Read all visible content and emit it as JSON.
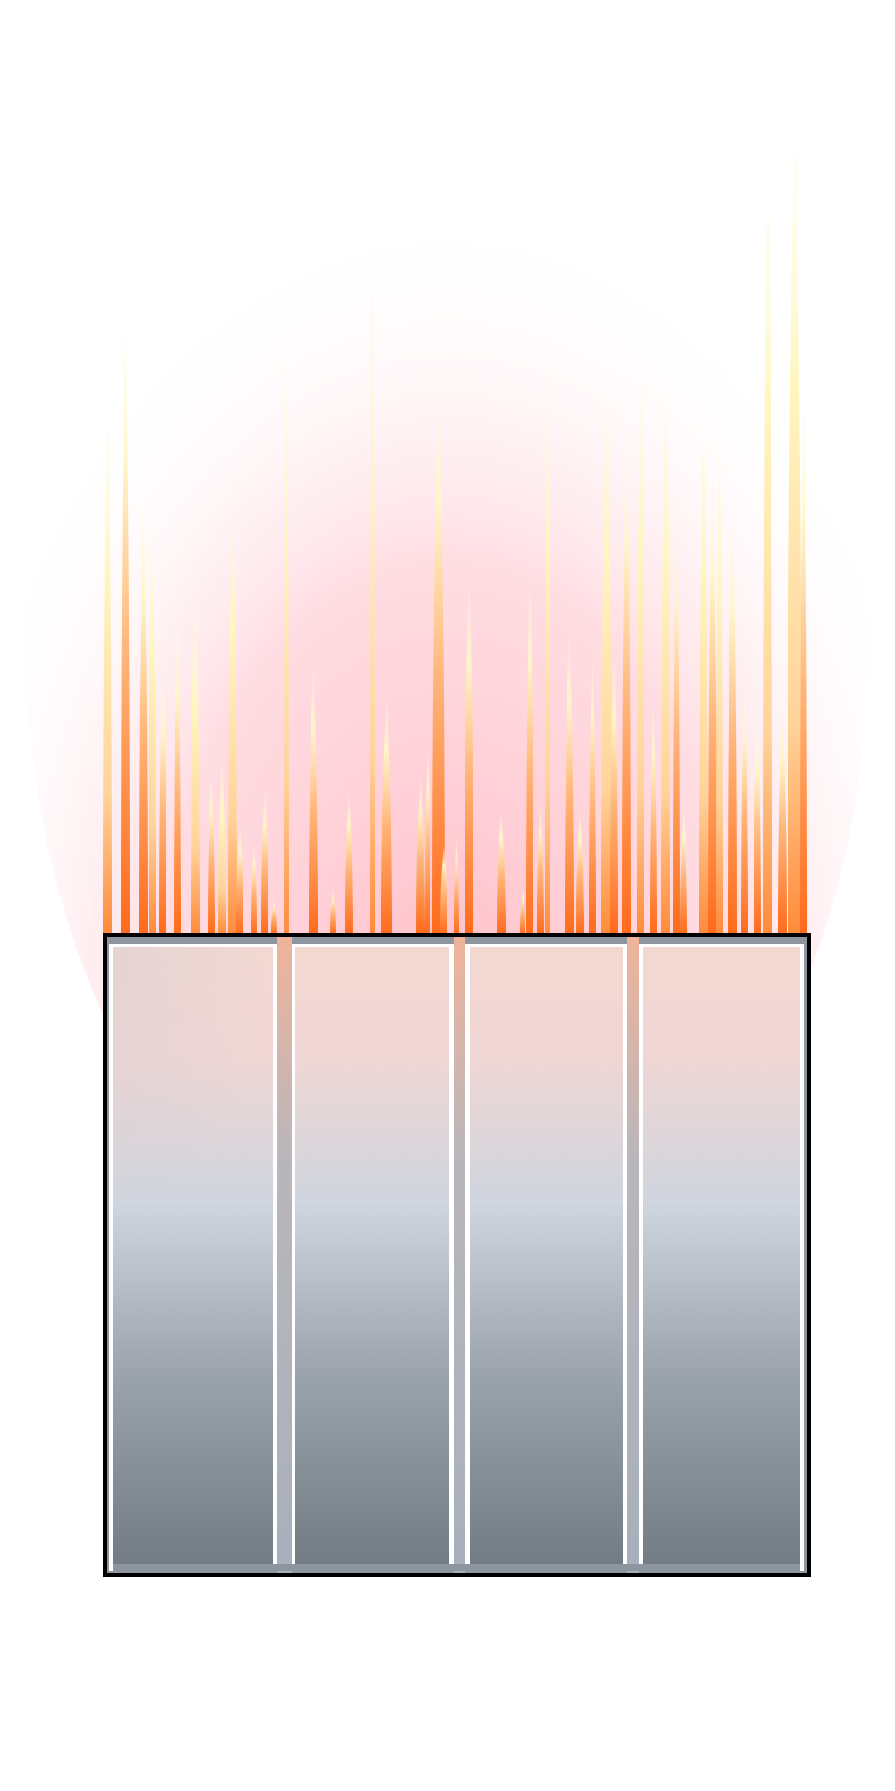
{
  "colors": {
    "background": "#ffffff",
    "glow_pink": "#ffc2cc",
    "flame_orange": "#ff6a1a",
    "flame_yellow": "#fffbd0",
    "box_border": "#000000",
    "panel_top": "#f3d6d0",
    "panel_mid": "#c9d0da",
    "panel_bottom": "#727a84",
    "bar_peach": "#f0b8a0"
  },
  "box": {
    "panel_count": 4
  },
  "flames": {
    "count": 52
  }
}
